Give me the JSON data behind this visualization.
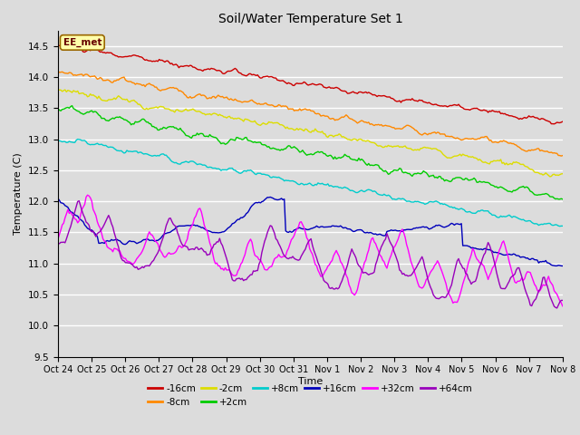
{
  "title": "Soil/Water Temperature Set 1",
  "xlabel": "Time",
  "ylabel": "Temperature (C)",
  "ylim": [
    9.5,
    14.75
  ],
  "yticks": [
    9.5,
    10.0,
    10.5,
    11.0,
    11.5,
    12.0,
    12.5,
    13.0,
    13.5,
    14.0,
    14.5
  ],
  "background_color": "#dcdcdc",
  "series": [
    {
      "label": "-16cm",
      "color": "#cc0000"
    },
    {
      "label": "-8cm",
      "color": "#ff8800"
    },
    {
      "label": "-2cm",
      "color": "#dddd00"
    },
    {
      "label": "+2cm",
      "color": "#00cc00"
    },
    {
      "label": "+8cm",
      "color": "#00cccc"
    },
    {
      "label": "+16cm",
      "color": "#0000bb"
    },
    {
      "label": "+32cm",
      "color": "#ff00ff"
    },
    {
      "label": "+64cm",
      "color": "#9900bb"
    }
  ],
  "annotation": "EE_met",
  "n_points": 360,
  "x_start": 0,
  "x_end": 15,
  "xtick_labels": [
    "Oct 24",
    "Oct 25",
    "Oct 26",
    "Oct 27",
    "Oct 28",
    "Oct 29",
    "Oct 30",
    "Oct 31",
    "Nov 1",
    "Nov 2",
    "Nov 3",
    "Nov 4",
    "Nov 5",
    "Nov 6",
    "Nov 7",
    "Nov 8"
  ],
  "xtick_positions": [
    0,
    1,
    2,
    3,
    4,
    5,
    6,
    7,
    8,
    9,
    10,
    11,
    12,
    13,
    14,
    15
  ]
}
